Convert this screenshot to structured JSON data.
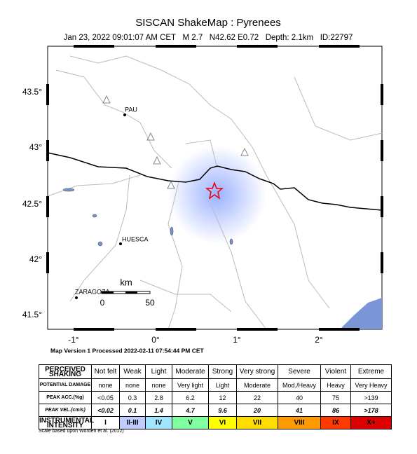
{
  "header": {
    "title": "SISCAN ShakeMap : Pyrenees",
    "subtitle": "Jan 23, 2022 09:01:07 AM CET   M 2.7   N42.62 E0.72   Depth: 2.1km   ID:22797"
  },
  "map": {
    "lat_labels": [
      "43.5°",
      "43°",
      "42.5°",
      "42°",
      "41.5°"
    ],
    "lon_labels": [
      "-1°",
      "0°",
      "1°",
      "2°"
    ],
    "cities": [
      "PAU",
      "HUESCA",
      "ZARAGOZA"
    ],
    "scale": {
      "unit": "km",
      "start": "0",
      "end": "50"
    },
    "version": "Map Version 1 Processed 2022-02-11 07:54:44 PM CET"
  },
  "table": {
    "rows": [
      [
        "PERCEIVED SHAKING",
        "Not felt",
        "Weak",
        "Light",
        "Moderate",
        "Strong",
        "Very strong",
        "Severe",
        "Violent",
        "Extreme"
      ],
      [
        "POTENTIAL DAMAGE",
        "none",
        "none",
        "none",
        "Very light",
        "Light",
        "Moderate",
        "Mod./Heavy",
        "Heavy",
        "Very Heavy"
      ],
      [
        "PEAK ACC.(%g)",
        "<0.05",
        "0.3",
        "2.8",
        "6.2",
        "12",
        "22",
        "40",
        "75",
        ">139"
      ],
      [
        "PEAK VEL.(cm/s)",
        "<0.02",
        "0.1",
        "1.4",
        "4.7",
        "9.6",
        "20",
        "41",
        "86",
        ">178"
      ],
      [
        "INSTRUMENTAL INTENSITY",
        "I",
        "II-III",
        "IV",
        "V",
        "VI",
        "VII",
        "VIII",
        "IX",
        "X+"
      ]
    ]
  },
  "footer": "Scale based upon Worden et al. (2012)"
}
